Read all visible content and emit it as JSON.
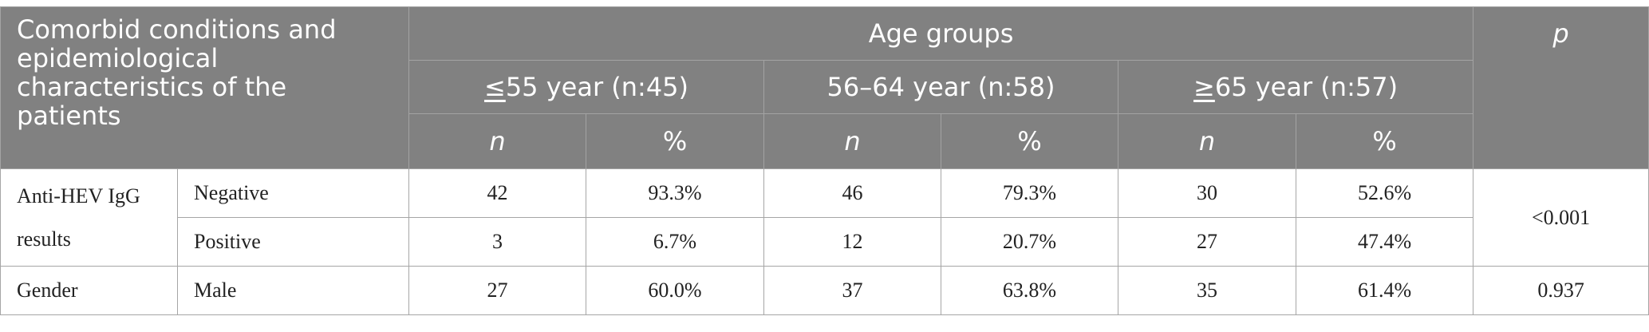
{
  "header": {
    "corner": "Comorbid conditions and epidemiological characteristics of the patients",
    "age_groups": "Age groups",
    "p": "p",
    "groups": [
      {
        "sym": "≤",
        "rest": "55 year (n:45)"
      },
      {
        "label": "56–64 year (n:58)"
      },
      {
        "sym": "≥",
        "rest": "65 year (n:57)"
      }
    ],
    "n": "n",
    "pct": "%"
  },
  "rows": [
    {
      "label": "Anti-HEV IgG results",
      "sub": "Negative",
      "values": [
        "42",
        "93.3%",
        "46",
        "79.3%",
        "30",
        "52.6%"
      ],
      "p": "<0.001"
    },
    {
      "sub": "Positive",
      "values": [
        "3",
        "6.7%",
        "12",
        "20.7%",
        "27",
        "47.4%"
      ]
    },
    {
      "label": "Gender",
      "sub": "Male",
      "values": [
        "27",
        "60.0%",
        "37",
        "63.8%",
        "35",
        "61.4%"
      ],
      "p": "0.937"
    }
  ]
}
